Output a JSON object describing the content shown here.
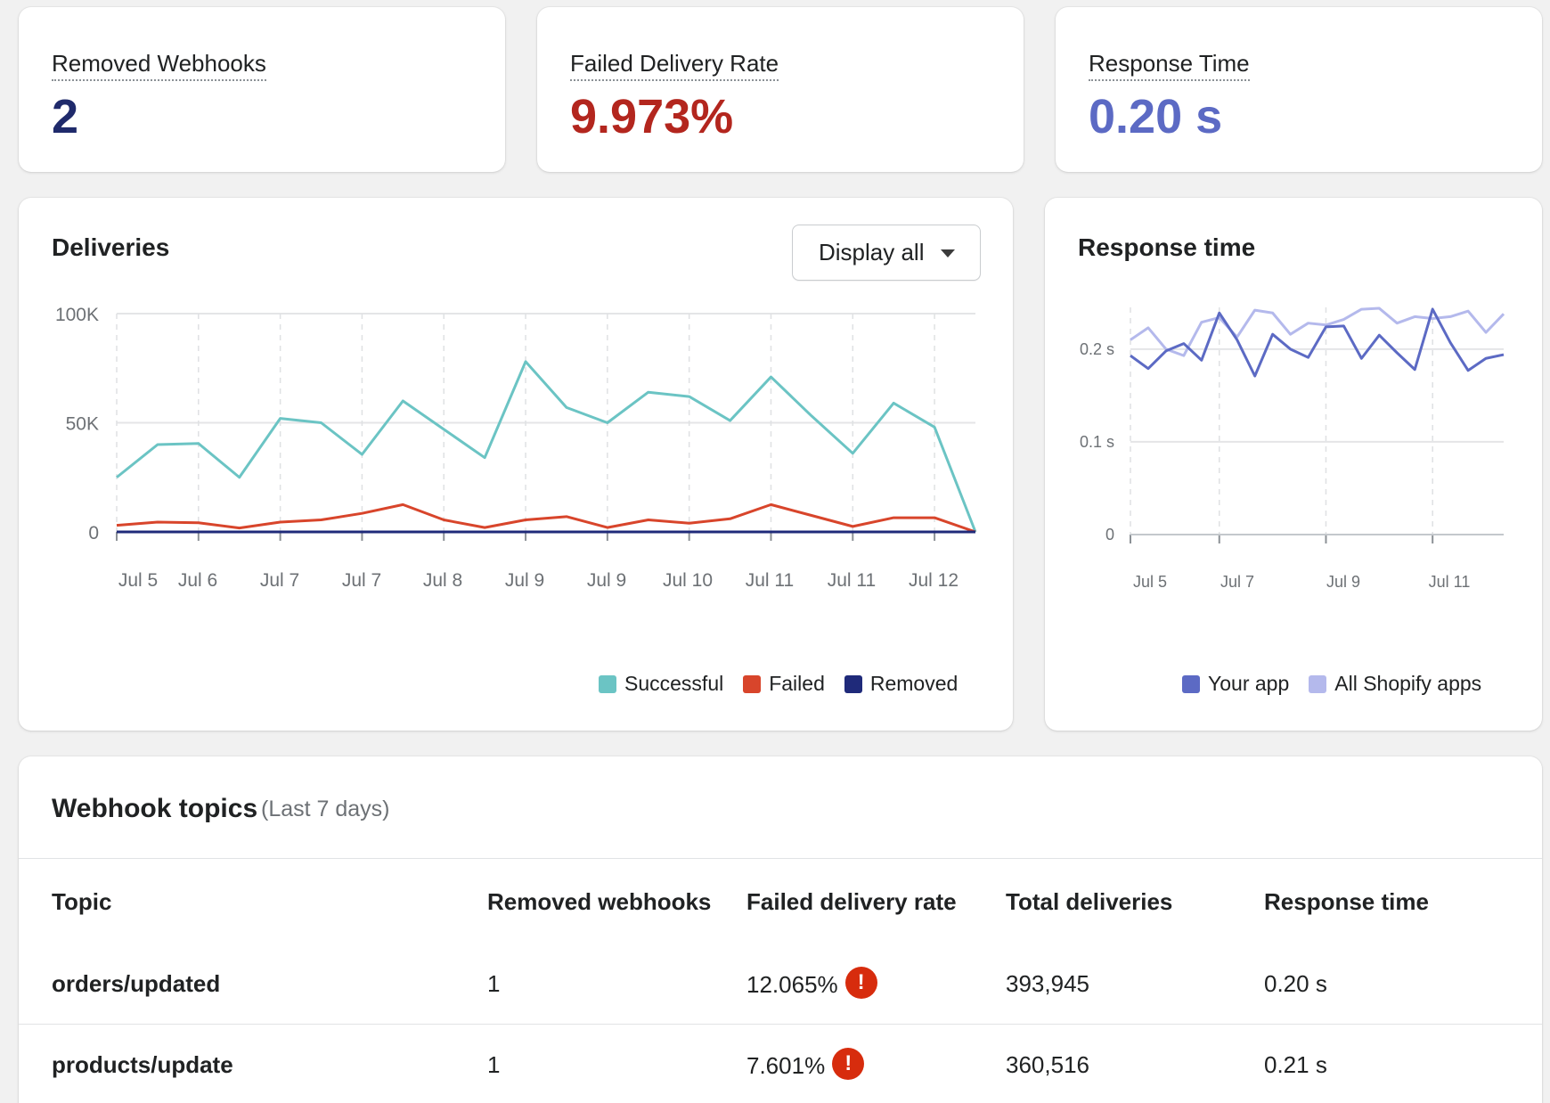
{
  "metrics": [
    {
      "label": "Removed Webhooks",
      "value": "2",
      "color": "#1f2a6b"
    },
    {
      "label": "Failed Delivery Rate",
      "value": "9.973%",
      "color": "#b3261e"
    },
    {
      "label": "Response Time",
      "value": "0.20 s",
      "color": "#5c6ac4"
    }
  ],
  "deliveries": {
    "title": "Deliveries",
    "dropdown_label": "Display all",
    "legend": [
      {
        "label": "Successful",
        "color": "#6bc4c4"
      },
      {
        "label": "Failed",
        "color": "#d8452b"
      },
      {
        "label": "Removed",
        "color": "#1f2a7a"
      }
    ]
  },
  "response_time": {
    "title": "Response time",
    "legend": [
      {
        "label": "Your app",
        "color": "#5c6ac4"
      },
      {
        "label": "All Shopify apps",
        "color": "#b4b9ec"
      }
    ]
  },
  "chart_data": [
    {
      "type": "line",
      "title": "Deliveries",
      "y_ticks": [
        "100K",
        "50K",
        "0"
      ],
      "ylim": [
        0,
        100000
      ],
      "tick_labels": [
        "Jul 5",
        "Jul 6",
        "Jul 7",
        "Jul 7",
        "Jul 8",
        "Jul 9",
        "Jul 9",
        "Jul 10",
        "Jul 11",
        "Jul 11",
        "Jul 12"
      ],
      "series": [
        {
          "name": "Successful",
          "color": "#6bc4c4",
          "values": [
            25000,
            40000,
            40500,
            25000,
            52000,
            50000,
            35500,
            60000,
            47000,
            34000,
            78000,
            57000,
            50000,
            64000,
            62000,
            51000,
            71000,
            53000,
            36000,
            59000,
            48000,
            0
          ]
        },
        {
          "name": "Failed",
          "color": "#d8452b",
          "values": [
            3000,
            4500,
            4200,
            1800,
            4500,
            5500,
            8500,
            12500,
            5500,
            2000,
            5500,
            7000,
            2000,
            5500,
            4000,
            6000,
            12500,
            7500,
            2500,
            6500,
            6500,
            0
          ]
        },
        {
          "name": "Removed",
          "color": "#1f2a7a",
          "values": [
            0,
            0,
            0,
            0,
            0,
            0,
            0,
            0,
            0,
            0,
            0,
            0,
            0,
            0,
            0,
            0,
            0,
            0,
            0,
            0,
            0,
            0
          ]
        }
      ]
    },
    {
      "type": "line",
      "title": "Response time",
      "y_ticks": [
        "0.2 s",
        "0.1 s",
        "0"
      ],
      "ylim": [
        0,
        0.245
      ],
      "tick_labels": [
        "Jul 5",
        "Jul 7",
        "Jul 9",
        "Jul 11"
      ],
      "series": [
        {
          "name": "All Shopify apps",
          "color": "#b4b9ec",
          "values": [
            0.21,
            0.223,
            0.2,
            0.193,
            0.229,
            0.234,
            0.213,
            0.242,
            0.239,
            0.216,
            0.228,
            0.226,
            0.232,
            0.243,
            0.244,
            0.228,
            0.235,
            0.233,
            0.235,
            0.241,
            0.218,
            0.238
          ]
        },
        {
          "name": "Your app",
          "color": "#5c6ac4",
          "values": [
            0.193,
            0.179,
            0.198,
            0.206,
            0.188,
            0.239,
            0.21,
            0.171,
            0.216,
            0.2,
            0.191,
            0.224,
            0.225,
            0.19,
            0.215,
            0.196,
            0.178,
            0.243,
            0.207,
            0.177,
            0.19,
            0.194
          ]
        }
      ]
    }
  ],
  "table": {
    "title": "Webhook topics",
    "subtitle": "(Last 7 days)",
    "headers": [
      "Topic",
      "Removed webhooks",
      "Failed delivery rate",
      "Total deliveries",
      "Response time"
    ],
    "rows": [
      {
        "topic": "orders/updated",
        "removed": "1",
        "failed_rate": "12.065%",
        "total": "393,945",
        "response": "0.20 s",
        "warning": "!"
      },
      {
        "topic": "products/update",
        "removed": "1",
        "failed_rate": "7.601%",
        "total": "360,516",
        "response": "0.21 s",
        "warning": "!"
      }
    ]
  }
}
